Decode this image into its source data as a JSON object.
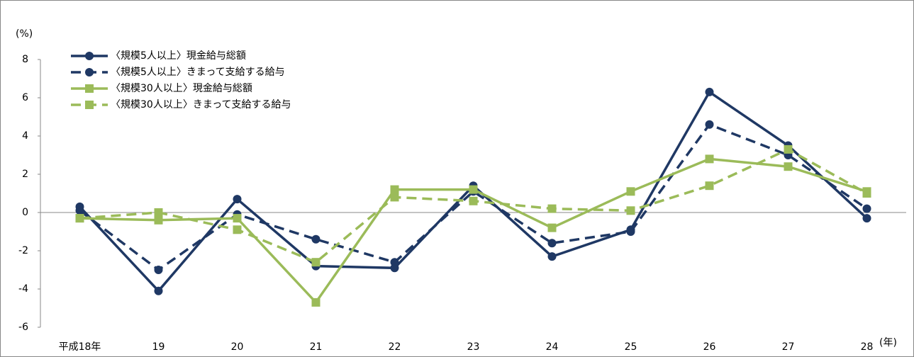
{
  "chart_data": {
    "type": "line",
    "y_unit": "(%)",
    "x_unit": "(年)",
    "categories": [
      "平成18年",
      "19",
      "20",
      "21",
      "22",
      "23",
      "24",
      "25",
      "26",
      "27",
      "28"
    ],
    "series": [
      {
        "name": "〈規模5人以上〉現金給与総額",
        "color": "#1f3864",
        "dash": false,
        "marker": "circle",
        "values": [
          0.3,
          -4.1,
          0.7,
          -2.8,
          -2.9,
          1.4,
          -2.3,
          -0.9,
          6.3,
          3.5,
          -0.3
        ]
      },
      {
        "name": "〈規模5人以上〉きまって支給する給与",
        "color": "#1f3864",
        "dash": true,
        "marker": "circle",
        "values": [
          0.1,
          -3.0,
          -0.1,
          -1.4,
          -2.6,
          1.1,
          -1.6,
          -1.0,
          4.6,
          3.0,
          0.2
        ]
      },
      {
        "name": "〈規模30人以上〉現金給与総額",
        "color": "#9bbb59",
        "dash": false,
        "marker": "square",
        "values": [
          -0.3,
          -0.4,
          -0.3,
          -4.7,
          1.2,
          1.2,
          -0.8,
          1.1,
          2.8,
          2.4,
          1.1
        ]
      },
      {
        "name": "〈規模30人以上〉きまって支給する給与",
        "color": "#9bbb59",
        "dash": true,
        "marker": "square",
        "values": [
          -0.3,
          0.0,
          -0.9,
          -2.6,
          0.8,
          0.6,
          0.2,
          0.1,
          1.4,
          3.3,
          1.0
        ]
      }
    ],
    "ylim": [
      -6,
      8
    ],
    "yticks": [
      -6,
      -4,
      -2,
      0,
      2,
      4,
      6,
      8
    ],
    "grid": false,
    "legend": "upper left"
  }
}
